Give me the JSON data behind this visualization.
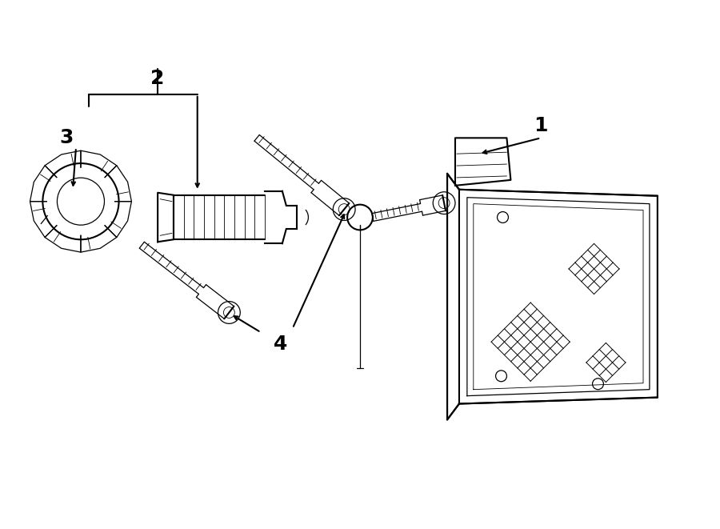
{
  "bg_color": "#ffffff",
  "line_color": "#000000",
  "label_color": "#000000",
  "fig_width": 9.0,
  "fig_height": 6.61,
  "dpi": 100
}
